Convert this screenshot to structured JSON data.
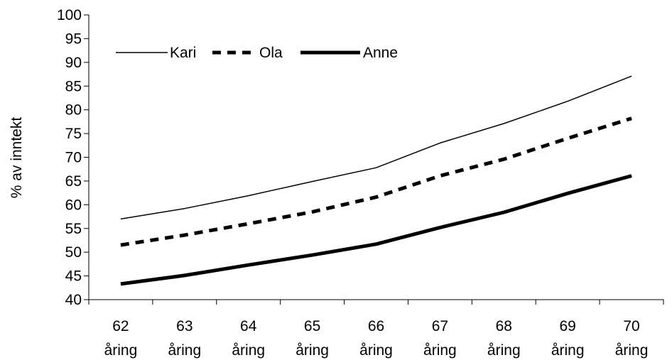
{
  "chart_data": {
    "type": "line",
    "title": "",
    "xlabel": "",
    "ylabel": "% av inntekt",
    "categories": [
      [
        "62",
        "åring"
      ],
      [
        "63",
        "åring"
      ],
      [
        "64",
        "åring"
      ],
      [
        "65",
        "åring"
      ],
      [
        "66",
        "åring"
      ],
      [
        "67",
        "åring"
      ],
      [
        "68",
        "åring"
      ],
      [
        "69",
        "åring"
      ],
      [
        "70",
        "åring"
      ]
    ],
    "ylim": [
      40,
      100
    ],
    "yticks": [
      40,
      45,
      50,
      55,
      60,
      65,
      70,
      75,
      80,
      85,
      90,
      95,
      100
    ],
    "grid": false,
    "legend_position": "top-left",
    "series": [
      {
        "name": "Kari",
        "style": "thin-solid",
        "color": "#000000",
        "values": [
          57,
          59.2,
          61.9,
          64.9,
          67.8,
          73,
          77.1,
          81.8,
          87.1
        ]
      },
      {
        "name": "Ola",
        "style": "dashed",
        "color": "#000000",
        "values": [
          51.5,
          53.6,
          56,
          58.5,
          61.6,
          66.1,
          69.6,
          74,
          78.2
        ]
      },
      {
        "name": "Anne",
        "style": "thick-solid",
        "color": "#000000",
        "values": [
          43.3,
          45.1,
          47.3,
          49.4,
          51.7,
          55.2,
          58.4,
          62.4,
          66.1
        ]
      }
    ]
  }
}
